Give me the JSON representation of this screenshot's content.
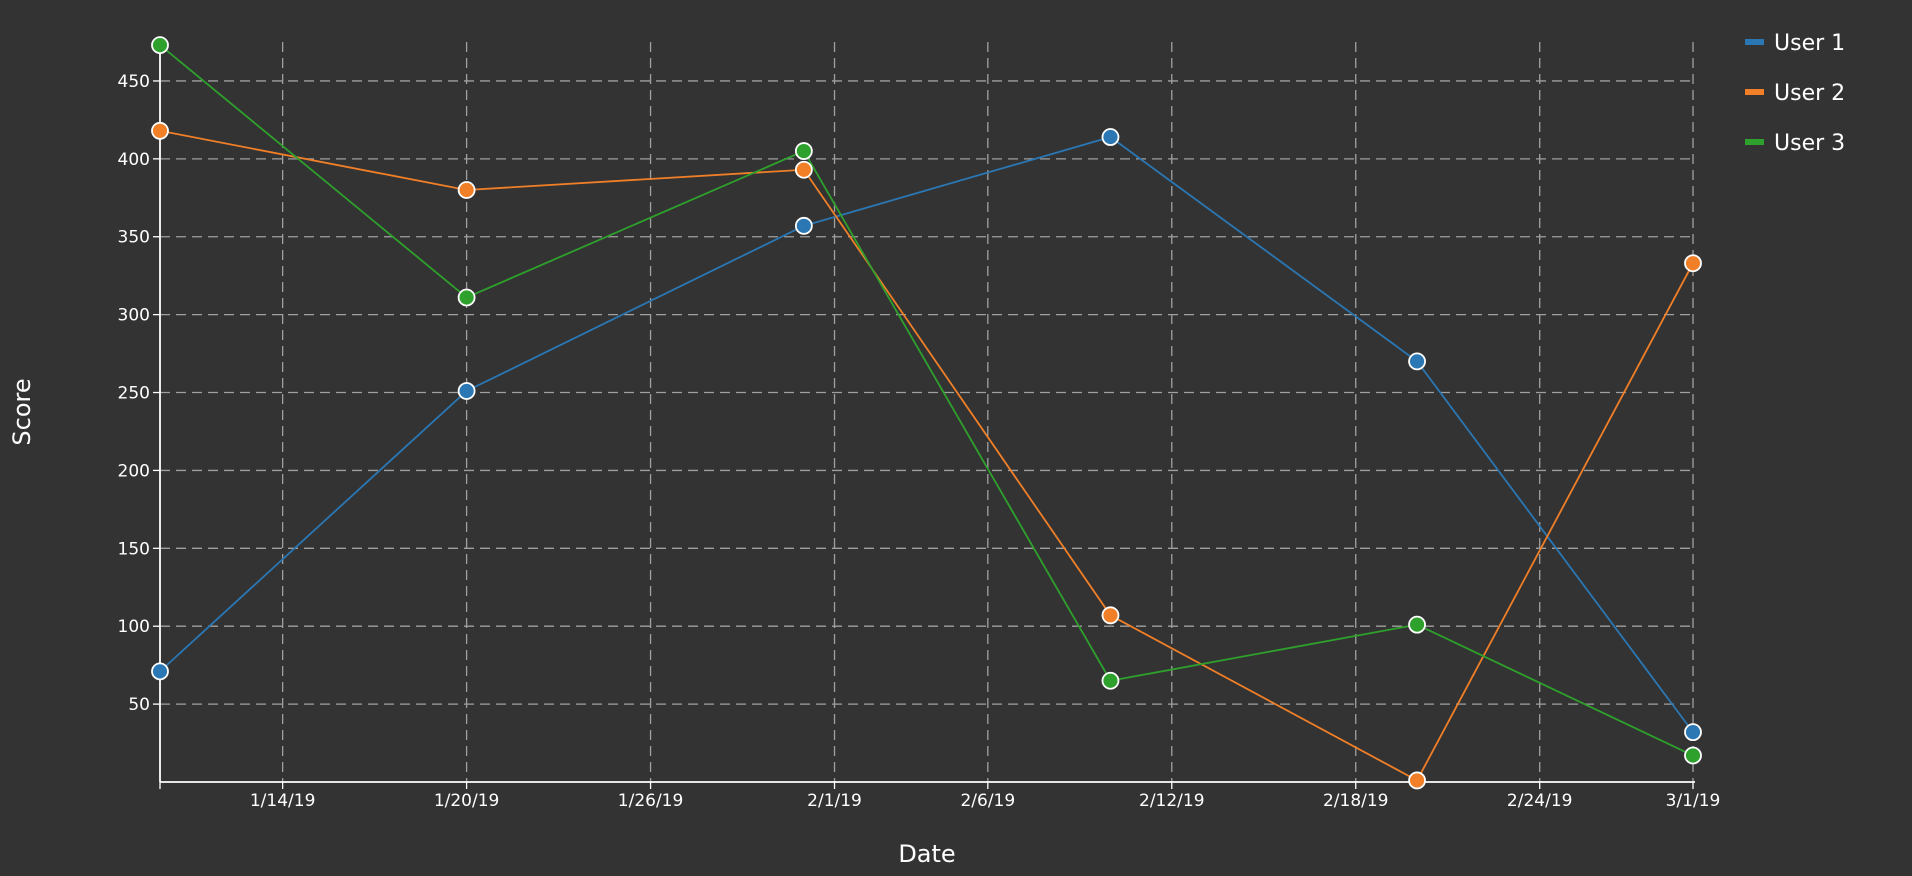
{
  "colors": {
    "background": "#333333",
    "grid": "#a0a0a0",
    "axis": "#ffffff",
    "text": "#ffffff",
    "point_stroke": "#ffffff"
  },
  "chart_data": {
    "type": "line",
    "xlabel": "Date",
    "ylabel": "Score",
    "x_is_date": true,
    "xlim": [
      "2019-01-10",
      "2019-03-01"
    ],
    "ylim": [
      0,
      475
    ],
    "x_ticks": [
      "2019-01-14",
      "2019-01-20",
      "2019-01-26",
      "2019-02-01",
      "2019-02-06",
      "2019-02-12",
      "2019-02-18",
      "2019-02-24",
      "2019-03-01"
    ],
    "x_tick_labels": [
      "1/14/19",
      "1/20/19",
      "1/26/19",
      "2/1/19",
      "2/6/19",
      "2/12/19",
      "2/18/19",
      "2/24/19",
      "3/1/19"
    ],
    "y_ticks": [
      50,
      100,
      150,
      200,
      250,
      300,
      350,
      400,
      450
    ],
    "y_tick_labels": [
      "50",
      "100",
      "150",
      "200",
      "250",
      "300",
      "350",
      "400",
      "450"
    ],
    "grid": true,
    "legend_position": "top-right",
    "series": [
      {
        "name": "User 1",
        "color": "#2a77b4",
        "x": [
          "2019-01-10",
          "2019-01-20",
          "2019-01-31",
          "2019-02-10",
          "2019-02-20",
          "2019-03-01"
        ],
        "y": [
          71,
          251,
          357,
          414,
          270,
          32
        ]
      },
      {
        "name": "User 2",
        "color": "#f07f28",
        "x": [
          "2019-01-10",
          "2019-01-20",
          "2019-01-31",
          "2019-02-10",
          "2019-02-20",
          "2019-03-01"
        ],
        "y": [
          418,
          380,
          393,
          107,
          1,
          333
        ]
      },
      {
        "name": "User 3",
        "color": "#2ea02c",
        "x": [
          "2019-01-10",
          "2019-01-20",
          "2019-01-31",
          "2019-02-10",
          "2019-02-20",
          "2019-03-01"
        ],
        "y": [
          473,
          311,
          405,
          65,
          101,
          17
        ]
      }
    ]
  }
}
